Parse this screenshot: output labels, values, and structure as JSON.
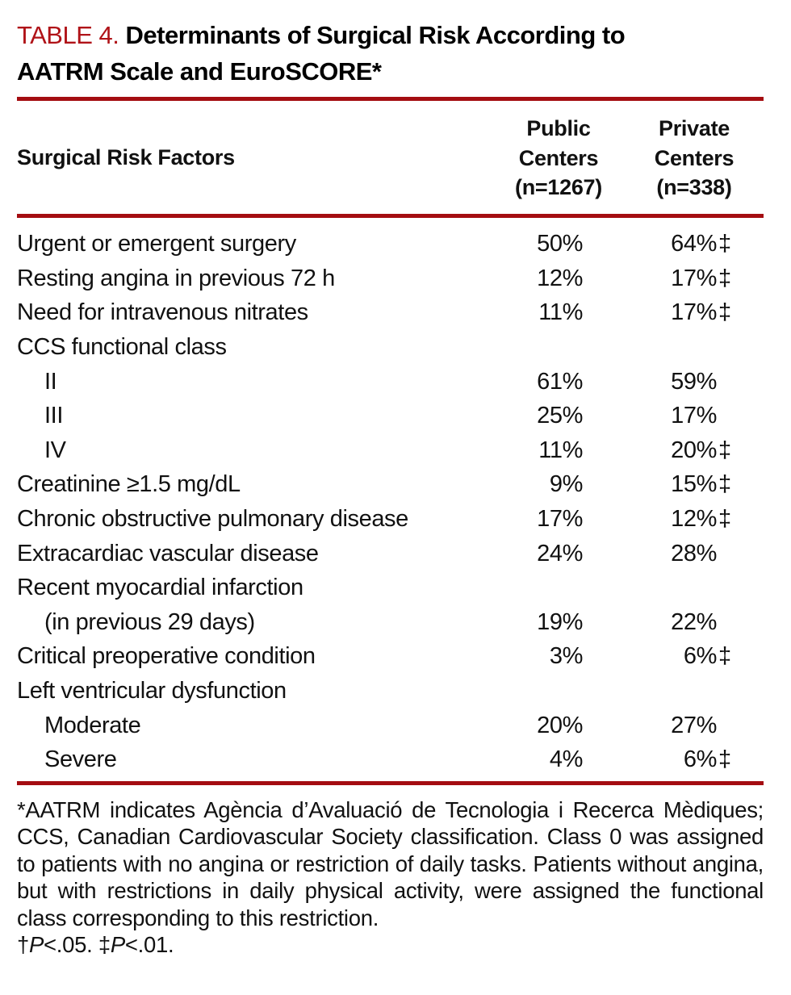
{
  "colors": {
    "accent_red": "#b01318",
    "rule_red": "#a40d11",
    "text": "#111111"
  },
  "title": {
    "tag": "TABLE 4. ",
    "line1": "Determinants of Surgical Risk According to",
    "line2": "AATRM Scale and EuroSCORE*"
  },
  "table": {
    "header": {
      "factor": "Surgical Risk Factors",
      "public": "Public\nCenters\n(n=1267)",
      "private": "Private\nCenters\n(n=338)"
    },
    "rows": [
      {
        "label": "Urgent or emergent surgery",
        "indent": 0,
        "public": "50%",
        "private": "64%",
        "dagger": "‡"
      },
      {
        "label": "Resting angina in previous 72 h",
        "indent": 0,
        "public": "12%",
        "private": "17%",
        "dagger": "‡"
      },
      {
        "label": "Need for intravenous nitrates",
        "indent": 0,
        "public": "11%",
        "private": "17%",
        "dagger": "‡"
      },
      {
        "label": "CCS functional class",
        "indent": 0,
        "public": "",
        "private": "",
        "dagger": ""
      },
      {
        "label": "II",
        "indent": 1,
        "public": "61%",
        "private": "59%",
        "dagger": ""
      },
      {
        "label": "III",
        "indent": 1,
        "public": "25%",
        "private": "17%",
        "dagger": ""
      },
      {
        "label": "IV",
        "indent": 1,
        "public": "11%",
        "private": "20%",
        "dagger": "‡"
      },
      {
        "label": "Creatinine ≥1.5 mg/dL",
        "indent": 0,
        "public": "9%",
        "private": "15%",
        "dagger": "‡"
      },
      {
        "label": "Chronic obstructive pulmonary disease",
        "indent": 0,
        "public": "17%",
        "private": "12%",
        "dagger": "‡"
      },
      {
        "label": "Extracardiac vascular disease",
        "indent": 0,
        "public": "24%",
        "private": "28%",
        "dagger": ""
      },
      {
        "label": "Recent myocardial infarction",
        "indent": 0,
        "public": "",
        "private": "",
        "dagger": ""
      },
      {
        "label": "(in previous 29 days)",
        "indent": 1,
        "public": "19%",
        "private": "22%",
        "dagger": ""
      },
      {
        "label": "Critical preoperative condition",
        "indent": 0,
        "public": "3%",
        "private": "6%",
        "dagger": "‡"
      },
      {
        "label": "Left ventricular dysfunction",
        "indent": 0,
        "public": "",
        "private": "",
        "dagger": ""
      },
      {
        "label": "Moderate",
        "indent": 1,
        "public": "20%",
        "private": "27%",
        "dagger": ""
      },
      {
        "label": "Severe",
        "indent": 1,
        "public": "4%",
        "private": "6%",
        "dagger": "‡"
      }
    ]
  },
  "footnotes": {
    "main": "*AATRM indicates Agència d’Avaluació de Tecnologia i Recerca Mèdiques; CCS, Canadian Cardiovascular Society classification. Class 0 was assigned to patients with no angina or restriction of daily tasks. Patients without angina, but with restrictions in daily physical activity, were assigned the functional class corresponding to this restriction.",
    "significance": [
      {
        "symbol": "†",
        "p": "P",
        "rest": "<.05. "
      },
      {
        "symbol": "‡",
        "p": "P",
        "rest": "<.01."
      }
    ]
  }
}
